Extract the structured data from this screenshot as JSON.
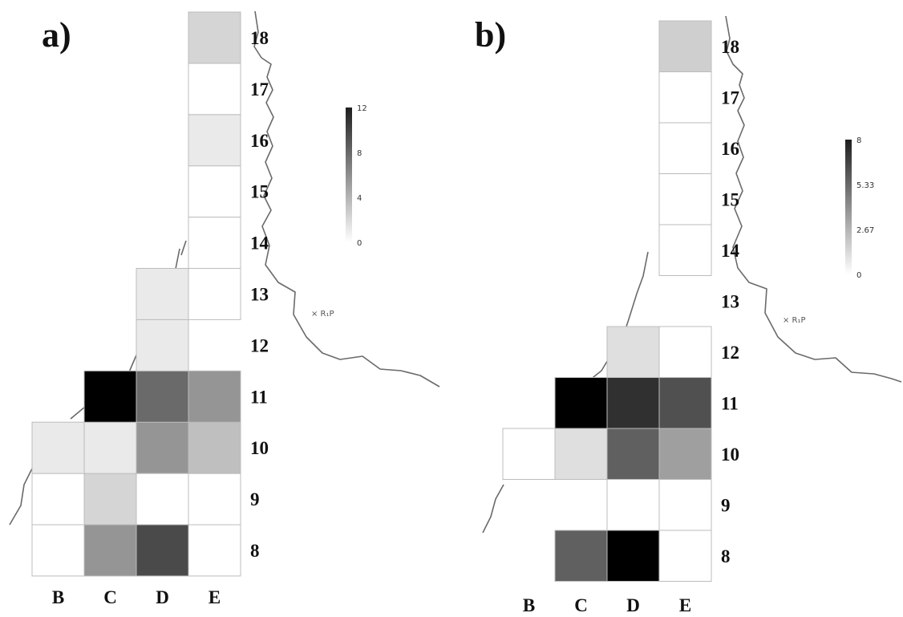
{
  "colors": {
    "cell_border": "#bcbcbc",
    "river": "#6a6a6a",
    "colorbar_top": "#1e1e1e",
    "colorbar_bottom": "#ffffff"
  },
  "chart_data": [
    {
      "type": "heatmap",
      "panel_label": "a)",
      "columns": [
        "B",
        "C",
        "D",
        "E"
      ],
      "rows": [
        8,
        9,
        10,
        11,
        12,
        13,
        14,
        15,
        16,
        17,
        18
      ],
      "colorbar": {
        "min": 0,
        "max": 12,
        "ticks": [
          "12",
          "8",
          "4",
          "0"
        ]
      },
      "cells": [
        {
          "col": "B",
          "row": 8,
          "value": 0
        },
        {
          "col": "C",
          "row": 8,
          "value": 5
        },
        {
          "col": "D",
          "row": 8,
          "value": 8.5
        },
        {
          "col": "E",
          "row": 8,
          "value": 0
        },
        {
          "col": "B",
          "row": 9,
          "value": 0
        },
        {
          "col": "C",
          "row": 9,
          "value": 2
        },
        {
          "col": "D",
          "row": 9,
          "value": 0
        },
        {
          "col": "E",
          "row": 9,
          "value": 0
        },
        {
          "col": "B",
          "row": 10,
          "value": 1
        },
        {
          "col": "C",
          "row": 10,
          "value": 1
        },
        {
          "col": "D",
          "row": 10,
          "value": 5
        },
        {
          "col": "E",
          "row": 10,
          "value": 3
        },
        {
          "col": "C",
          "row": 11,
          "value": 12
        },
        {
          "col": "D",
          "row": 11,
          "value": 7
        },
        {
          "col": "E",
          "row": 11,
          "value": 5
        },
        {
          "col": "D",
          "row": 12,
          "value": 1
        },
        {
          "col": "D",
          "row": 13,
          "value": 1
        },
        {
          "col": "E",
          "row": 13,
          "value": 0
        },
        {
          "col": "E",
          "row": 14,
          "value": 0
        },
        {
          "col": "E",
          "row": 15,
          "value": 0
        },
        {
          "col": "E",
          "row": 16,
          "value": 1
        },
        {
          "col": "E",
          "row": 17,
          "value": 0
        },
        {
          "col": "E",
          "row": 18,
          "value": 2
        }
      ]
    },
    {
      "type": "heatmap",
      "panel_label": "b)",
      "columns": [
        "B",
        "C",
        "D",
        "E"
      ],
      "rows": [
        8,
        9,
        10,
        11,
        12,
        13,
        14,
        15,
        16,
        17,
        18
      ],
      "colorbar": {
        "min": 0,
        "max": 8,
        "ticks": [
          "8",
          "5.33",
          "2.67",
          "0"
        ]
      },
      "cells": [
        {
          "col": "C",
          "row": 8,
          "value": 5
        },
        {
          "col": "D",
          "row": 8,
          "value": 8
        },
        {
          "col": "E",
          "row": 8,
          "value": 0
        },
        {
          "col": "D",
          "row": 9,
          "value": 0
        },
        {
          "col": "E",
          "row": 9,
          "value": 0
        },
        {
          "col": "B",
          "row": 10,
          "value": 0
        },
        {
          "col": "C",
          "row": 10,
          "value": 1
        },
        {
          "col": "D",
          "row": 10,
          "value": 5
        },
        {
          "col": "E",
          "row": 10,
          "value": 3
        },
        {
          "col": "C",
          "row": 11,
          "value": 8
        },
        {
          "col": "D",
          "row": 11,
          "value": 6.5
        },
        {
          "col": "E",
          "row": 11,
          "value": 5.5
        },
        {
          "col": "D",
          "row": 12,
          "value": 1
        },
        {
          "col": "E",
          "row": 12,
          "value": 0
        },
        {
          "col": "E",
          "row": 14,
          "value": 0
        },
        {
          "col": "E",
          "row": 15,
          "value": 0
        },
        {
          "col": "E",
          "row": 16,
          "value": 0
        },
        {
          "col": "E",
          "row": 17,
          "value": 0
        },
        {
          "col": "E",
          "row": 18,
          "value": 1.5
        }
      ]
    }
  ],
  "map_marker": {
    "label": "× R₁P"
  }
}
